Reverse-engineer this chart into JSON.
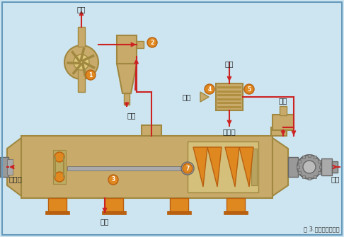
{
  "bg_color": "#cde5f0",
  "border_color": "#6699bb",
  "tan_color": "#c8aa6a",
  "tan_light": "#ddc87a",
  "tan_dark": "#a08840",
  "orange_color": "#e08820",
  "orange_dark": "#b86010",
  "red_color": "#cc2222",
  "gray_color": "#999999",
  "gray_dark": "#666666",
  "white_color": "#ffffff",
  "title": "图 3.常压干燥流程图",
  "labels": {
    "fangkong": "放空",
    "paoliao_top": "排料",
    "zhengqi_top": "蒸气",
    "jifeng": "给风",
    "jiliao": "给料",
    "lengnishui_top": "冷凝水",
    "lengnishui_bot": "冷凝水",
    "paoliao_bot": "排料",
    "zhengqi_bot": "蒸气"
  }
}
